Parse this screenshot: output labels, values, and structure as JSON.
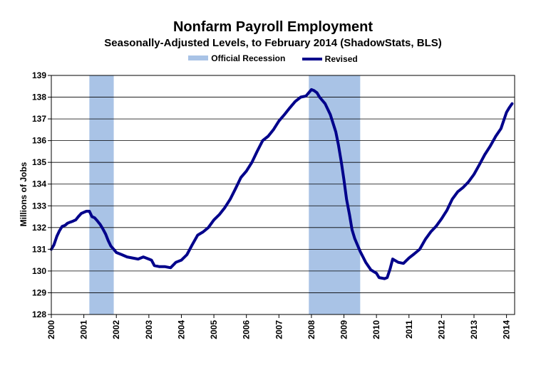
{
  "chart_data": {
    "type": "line",
    "title": "Nonfarm Payroll Employment",
    "subtitle": "Seasonally-Adjusted Levels, to February 2014 (ShadowStats, BLS)",
    "ylabel": "Millions of Jobs",
    "xlabel": "",
    "ylim": [
      128,
      139
    ],
    "yticks": [
      "128",
      "129",
      "130",
      "131",
      "132",
      "133",
      "134",
      "135",
      "136",
      "137",
      "138",
      "139"
    ],
    "xlim": [
      2000,
      2014.25
    ],
    "xticks": [
      "2000",
      "2001",
      "2002",
      "2003",
      "2004",
      "2005",
      "2006",
      "2007",
      "2008",
      "2009",
      "2010",
      "2011",
      "2012",
      "2013",
      "2014"
    ],
    "grid": true,
    "legend": {
      "placement": "top",
      "recession_label": "Official Recession",
      "series_label": "Revised"
    },
    "colors": {
      "line": "#00008b",
      "recession": "#a9c3e6",
      "grid": "#000000"
    },
    "recessions": [
      {
        "start": 2001.17,
        "end": 2001.92
      },
      {
        "start": 2007.92,
        "end": 2009.5
      }
    ],
    "series": [
      {
        "name": "Revised",
        "points": [
          [
            2000.0,
            131.0
          ],
          [
            2000.08,
            131.2
          ],
          [
            2000.17,
            131.6
          ],
          [
            2000.25,
            131.85
          ],
          [
            2000.33,
            132.05
          ],
          [
            2000.42,
            132.1
          ],
          [
            2000.5,
            132.2
          ],
          [
            2000.58,
            132.25
          ],
          [
            2000.67,
            132.3
          ],
          [
            2000.75,
            132.35
          ],
          [
            2000.83,
            132.5
          ],
          [
            2000.92,
            132.65
          ],
          [
            2001.0,
            132.7
          ],
          [
            2001.08,
            132.75
          ],
          [
            2001.17,
            132.75
          ],
          [
            2001.25,
            132.5
          ],
          [
            2001.33,
            132.45
          ],
          [
            2001.42,
            132.3
          ],
          [
            2001.5,
            132.15
          ],
          [
            2001.58,
            131.95
          ],
          [
            2001.67,
            131.7
          ],
          [
            2001.75,
            131.4
          ],
          [
            2001.83,
            131.15
          ],
          [
            2001.92,
            131.0
          ],
          [
            2002.0,
            130.85
          ],
          [
            2002.17,
            130.75
          ],
          [
            2002.33,
            130.65
          ],
          [
            2002.5,
            130.6
          ],
          [
            2002.67,
            130.55
          ],
          [
            2002.83,
            130.65
          ],
          [
            2003.0,
            130.55
          ],
          [
            2003.08,
            130.5
          ],
          [
            2003.17,
            130.25
          ],
          [
            2003.33,
            130.2
          ],
          [
            2003.5,
            130.2
          ],
          [
            2003.67,
            130.15
          ],
          [
            2003.83,
            130.4
          ],
          [
            2004.0,
            130.5
          ],
          [
            2004.17,
            130.75
          ],
          [
            2004.33,
            131.2
          ],
          [
            2004.5,
            131.65
          ],
          [
            2004.67,
            131.8
          ],
          [
            2004.83,
            132.0
          ],
          [
            2005.0,
            132.35
          ],
          [
            2005.17,
            132.6
          ],
          [
            2005.33,
            132.9
          ],
          [
            2005.5,
            133.3
          ],
          [
            2005.67,
            133.8
          ],
          [
            2005.83,
            134.3
          ],
          [
            2006.0,
            134.6
          ],
          [
            2006.17,
            135.0
          ],
          [
            2006.33,
            135.5
          ],
          [
            2006.5,
            136.0
          ],
          [
            2006.67,
            136.2
          ],
          [
            2006.83,
            136.5
          ],
          [
            2007.0,
            136.9
          ],
          [
            2007.17,
            137.2
          ],
          [
            2007.33,
            137.5
          ],
          [
            2007.5,
            137.8
          ],
          [
            2007.67,
            138.0
          ],
          [
            2007.83,
            138.05
          ],
          [
            2008.0,
            138.35
          ],
          [
            2008.08,
            138.3
          ],
          [
            2008.17,
            138.2
          ],
          [
            2008.25,
            138.0
          ],
          [
            2008.42,
            137.7
          ],
          [
            2008.58,
            137.2
          ],
          [
            2008.75,
            136.4
          ],
          [
            2008.83,
            135.8
          ],
          [
            2008.92,
            135.0
          ],
          [
            2009.0,
            134.2
          ],
          [
            2009.08,
            133.3
          ],
          [
            2009.17,
            132.6
          ],
          [
            2009.25,
            131.9
          ],
          [
            2009.33,
            131.5
          ],
          [
            2009.5,
            130.9
          ],
          [
            2009.67,
            130.4
          ],
          [
            2009.83,
            130.05
          ],
          [
            2010.0,
            129.9
          ],
          [
            2010.08,
            129.7
          ],
          [
            2010.25,
            129.65
          ],
          [
            2010.33,
            129.7
          ],
          [
            2010.42,
            130.1
          ],
          [
            2010.5,
            130.55
          ],
          [
            2010.67,
            130.4
          ],
          [
            2010.83,
            130.35
          ],
          [
            2011.0,
            130.6
          ],
          [
            2011.17,
            130.8
          ],
          [
            2011.33,
            131.0
          ],
          [
            2011.5,
            131.45
          ],
          [
            2011.67,
            131.8
          ],
          [
            2011.83,
            132.05
          ],
          [
            2012.0,
            132.4
          ],
          [
            2012.17,
            132.8
          ],
          [
            2012.33,
            133.3
          ],
          [
            2012.5,
            133.65
          ],
          [
            2012.67,
            133.85
          ],
          [
            2012.83,
            134.1
          ],
          [
            2013.0,
            134.45
          ],
          [
            2013.17,
            134.9
          ],
          [
            2013.33,
            135.35
          ],
          [
            2013.5,
            135.75
          ],
          [
            2013.67,
            136.2
          ],
          [
            2013.83,
            136.55
          ],
          [
            2014.0,
            137.3
          ],
          [
            2014.08,
            137.5
          ],
          [
            2014.17,
            137.7
          ]
        ]
      }
    ]
  }
}
